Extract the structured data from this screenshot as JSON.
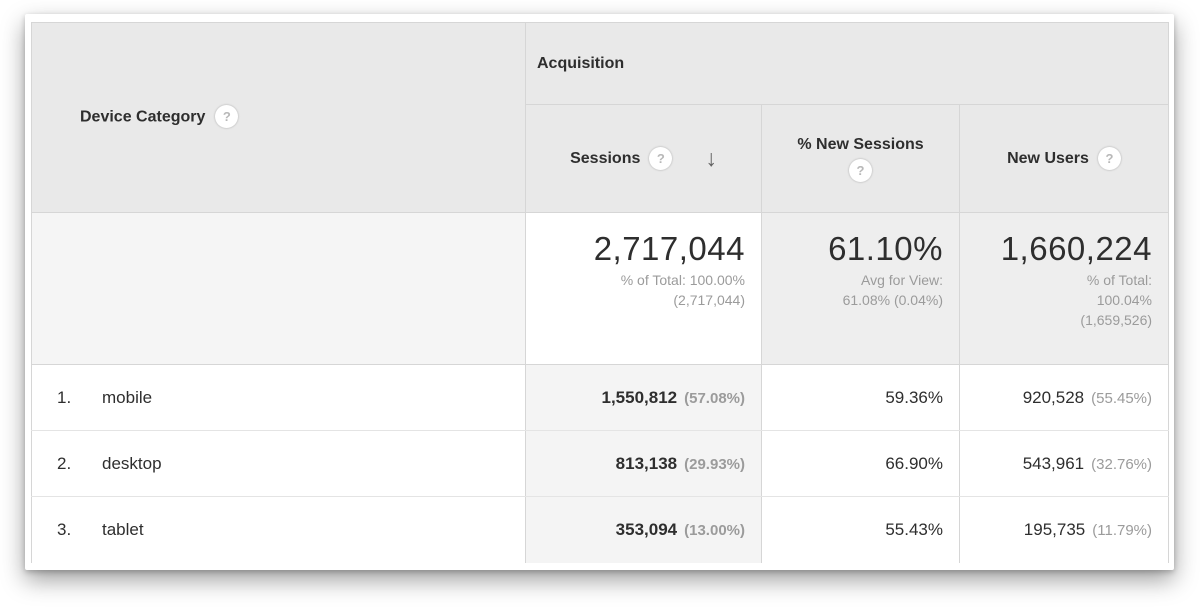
{
  "colors": {
    "header-bg": "#e9e9e9",
    "border": "#d6d6d6",
    "row-border": "#e4e4e4",
    "text-dark": "#2e2e2e",
    "text-gray": "#9b9b9b",
    "sorted-col-bg": "#f4f4f4",
    "summary-tint-bg": "#eeeeee",
    "summary-dim-bg": "#f5f5f5",
    "icon-bg": "#ffffff",
    "icon-fg": "#b8b8b8",
    "arrow-color": "#636363"
  },
  "icons": {
    "help": "?",
    "sort_descending": "↓"
  },
  "header": {
    "dimension_label": "Device Category",
    "group_label": "Acquisition",
    "metrics": [
      {
        "label": "Sessions",
        "sorted": "descending"
      },
      {
        "label": "% New Sessions"
      },
      {
        "label": "New Users"
      }
    ]
  },
  "summary": {
    "sessions": {
      "value": "2,717,044",
      "lines": [
        "% of Total: 100.00%",
        "(2,717,044)"
      ]
    },
    "new_sessions": {
      "value": "61.10%",
      "lines": [
        "Avg for View:",
        "61.08% (0.04%)"
      ]
    },
    "new_users": {
      "value": "1,660,224",
      "lines": [
        "% of Total:",
        "100.04%",
        "(1,659,526)"
      ]
    }
  },
  "rows": [
    {
      "rank": "1.",
      "device": "mobile",
      "sessions": "1,550,812",
      "sessions_share": "(57.08%)",
      "pct_new_sessions": "59.36%",
      "new_users": "920,528",
      "new_users_share": "(55.45%)"
    },
    {
      "rank": "2.",
      "device": "desktop",
      "sessions": "813,138",
      "sessions_share": "(29.93%)",
      "pct_new_sessions": "66.90%",
      "new_users": "543,961",
      "new_users_share": "(32.76%)"
    },
    {
      "rank": "3.",
      "device": "tablet",
      "sessions": "353,094",
      "sessions_share": "(13.00%)",
      "pct_new_sessions": "55.43%",
      "new_users": "195,735",
      "new_users_share": "(11.79%)"
    }
  ]
}
